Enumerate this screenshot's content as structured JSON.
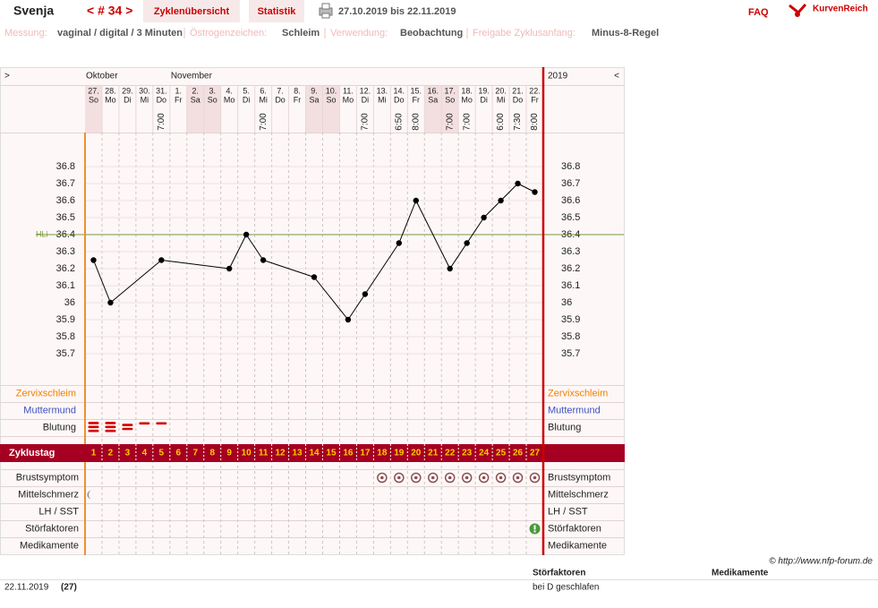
{
  "header": {
    "name": "Svenja",
    "cycle": "< # 34 >",
    "tabs": [
      "Zyklenübersicht",
      "Statistik"
    ],
    "range": "27.10.2019 bis 22.11.2019",
    "faq": "FAQ",
    "logo": "KurvenReich"
  },
  "info": [
    {
      "label": "Messung:",
      "value": "vaginal / digital / 3 Minuten"
    },
    {
      "label": "Östrogenzeichen:",
      "value": "Schleim"
    },
    {
      "label": "Verwendung:",
      "value": "Beobachtung"
    },
    {
      "label": "Freigabe Zyklusanfang:",
      "value": "Minus-8-Regel"
    }
  ],
  "chart_data": {
    "type": "line",
    "nav_left": ">",
    "nav_right": "<",
    "months": [
      "Oktober",
      "November"
    ],
    "year": "2019",
    "categories": [
      "27.",
      "28.",
      "29.",
      "30.",
      "31.",
      "1.",
      "2.",
      "3.",
      "4.",
      "5.",
      "6.",
      "7.",
      "8.",
      "9.",
      "10.",
      "11.",
      "12.",
      "13.",
      "14.",
      "15.",
      "16.",
      "17.",
      "18.",
      "19.",
      "20.",
      "21.",
      "22."
    ],
    "weekdays": [
      "So",
      "Mo",
      "Di",
      "Mi",
      "Do",
      "Fr",
      "Sa",
      "So",
      "Mo",
      "Di",
      "Mi",
      "Do",
      "Fr",
      "Sa",
      "So",
      "Mo",
      "Di",
      "Mi",
      "Do",
      "Fr",
      "Sa",
      "So",
      "Mo",
      "Di",
      "Mi",
      "Do",
      "Fr"
    ],
    "times": [
      null,
      null,
      null,
      null,
      "7:00",
      null,
      null,
      null,
      null,
      null,
      "7:00",
      null,
      null,
      null,
      null,
      null,
      "7:00",
      null,
      "6:50",
      "8:00",
      null,
      "7:00",
      "7:00",
      null,
      "6:00",
      "7:30",
      "8:00"
    ],
    "values": [
      36.25,
      36,
      null,
      null,
      36.25,
      null,
      null,
      null,
      36.2,
      36.4,
      36.25,
      null,
      null,
      36.15,
      null,
      35.9,
      36.05,
      null,
      36.35,
      36.6,
      null,
      36.2,
      36.35,
      36.5,
      36.6,
      36.7,
      36.65
    ],
    "color": "#000000",
    "ylim": [
      35.5,
      37.0
    ],
    "yticks": [
      36.8,
      36.7,
      36.6,
      36.5,
      36.4,
      36.3,
      36.2,
      36.1,
      36,
      35.9,
      35.8,
      35.7
    ],
    "hli": {
      "label": "HLi",
      "value": 36.4,
      "color": "#7a9a3a"
    }
  },
  "rows_top": [
    "Zervixschleim",
    "Muttermund",
    "Blutung"
  ],
  "blutung": [
    3,
    3,
    2,
    1,
    1,
    null,
    null,
    null,
    null,
    null,
    null,
    null,
    null,
    null,
    null,
    null,
    null,
    null,
    null,
    null,
    null,
    null,
    null,
    null,
    null,
    null,
    null
  ],
  "zyklustag": {
    "label": "Zyklustag",
    "days": [
      1,
      2,
      3,
      4,
      5,
      6,
      7,
      8,
      9,
      10,
      11,
      12,
      13,
      14,
      15,
      16,
      17,
      18,
      19,
      20,
      21,
      22,
      23,
      24,
      25,
      26,
      27
    ]
  },
  "rows_bottom": [
    "Brustsymptom",
    "Mittelschmerz",
    "LH / SST",
    "Störfaktoren",
    "Medikamente"
  ],
  "brustsymptom": [
    false,
    false,
    false,
    false,
    false,
    false,
    false,
    false,
    false,
    false,
    false,
    false,
    false,
    false,
    false,
    false,
    false,
    true,
    true,
    true,
    true,
    true,
    true,
    true,
    true,
    true,
    true
  ],
  "mittelschmerz": [
    true,
    false,
    false,
    false,
    false,
    false,
    false,
    false,
    false,
    false,
    false,
    false,
    false,
    false,
    false,
    false,
    false,
    false,
    false,
    false,
    false,
    false,
    false,
    false,
    false,
    false,
    false
  ],
  "stoerfaktoren": [
    false,
    false,
    false,
    false,
    false,
    false,
    false,
    false,
    false,
    false,
    false,
    false,
    false,
    false,
    false,
    false,
    false,
    false,
    false,
    false,
    false,
    false,
    false,
    false,
    false,
    false,
    true
  ],
  "footer": {
    "copyright": "© http://www.nfp-forum.de",
    "date": "22.11.2019",
    "cycle_day": "(27)",
    "notes": [
      {
        "title": "Störfaktoren",
        "entries": [
          "bei D geschlafen"
        ]
      },
      {
        "title": "Medikamente",
        "entries": []
      }
    ]
  }
}
